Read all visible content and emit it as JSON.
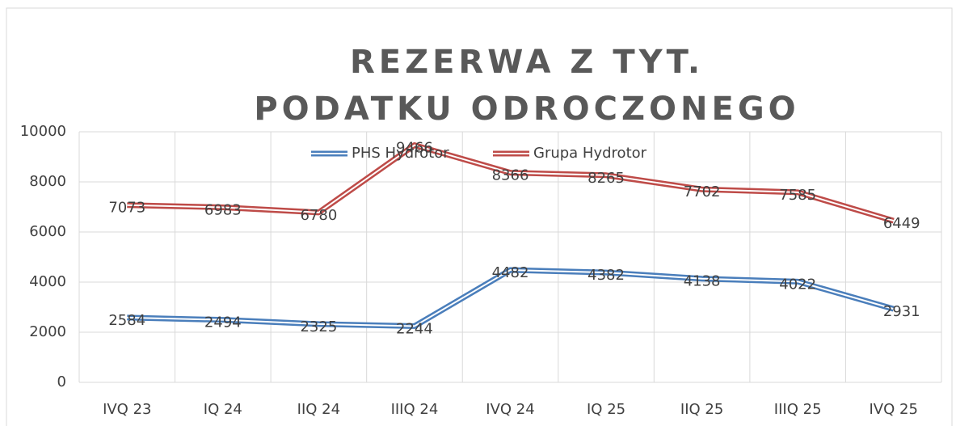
{
  "chart_data": {
    "type": "line",
    "title": "REZERWA Z TYT. PODATKU ODROCZONEGO",
    "categories": [
      "IVQ 23",
      "IQ 24",
      "IIQ 24",
      "IIIQ 24",
      "IVQ 24",
      "IQ 25",
      "IIQ 25",
      "IIIQ 25",
      "IVQ 25"
    ],
    "series": [
      {
        "name": "PHS Hydrotor",
        "color": "#4a7ebb",
        "values": [
          2584,
          2494,
          2325,
          2244,
          4482,
          4382,
          4138,
          4022,
          2931
        ]
      },
      {
        "name": "Grupa Hydrotor",
        "color": "#be4b48",
        "values": [
          7073,
          6983,
          6780,
          9466,
          8366,
          8265,
          7702,
          7585,
          6449
        ]
      }
    ],
    "ylim": [
      0,
      10000
    ],
    "yticks": [
      0,
      2000,
      4000,
      6000,
      8000,
      10000
    ],
    "grid": true,
    "legend": "top"
  }
}
